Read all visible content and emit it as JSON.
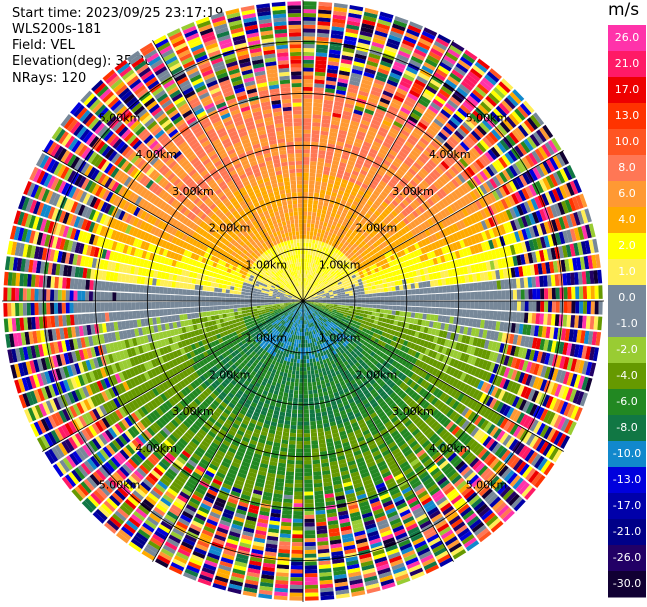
{
  "header": {
    "start_time": "Start time: 2023/09/25 23:17:19",
    "instrument": "WLS200s-181",
    "field": "Field: VEL",
    "elevation": "Elevation(deg): 35.30",
    "nrays": "NRays: 120"
  },
  "colorbar": {
    "unit": "m/s",
    "labels": [
      "26.0",
      "21.0",
      "17.0",
      "13.0",
      "10.0",
      "8.0",
      "6.0",
      "4.0",
      "2.0",
      "1.0",
      "0.0",
      "-1.0",
      "-2.0",
      "-4.0",
      "-6.0",
      "-8.0",
      "-10.0",
      "-13.0",
      "-17.0",
      "-21.0",
      "-26.0",
      "-30.0"
    ],
    "colors": [
      "#ff33aa",
      "#ff1a66",
      "#ee0000",
      "#ff3300",
      "#ff5522",
      "#ff7755",
      "#ff9933",
      "#ffaa00",
      "#ffff00",
      "#ffee55",
      "#778899",
      "#778899",
      "#99cc33",
      "#669900",
      "#228822",
      "#117744",
      "#1188cc",
      "#0000dd",
      "#0000aa",
      "#000088",
      "#220066",
      "#110033"
    ]
  },
  "chart_data": {
    "type": "ppi",
    "field": "VEL",
    "units": "m/s",
    "nrays": 120,
    "elevation_deg": 35.3,
    "range_rings": [
      {
        "range_km": 1.0,
        "label": "1.00km"
      },
      {
        "range_km": 2.0,
        "label": "2.00km"
      },
      {
        "range_km": 3.0,
        "label": "3.00km"
      },
      {
        "range_km": 4.0,
        "label": "4.00km"
      },
      {
        "range_km": 5.0,
        "label": "5.00km"
      }
    ],
    "max_range_km": 5.8,
    "spokes_deg": [
      0,
      30,
      60,
      90,
      120,
      150,
      180,
      210,
      240,
      270,
      300,
      330
    ],
    "velocity_pattern": {
      "north_near_ms": 2.0,
      "north_mid_ms": 6.0,
      "north_far_ms": 8.0,
      "east_west_ms": 0.0,
      "south_near_ms": -8.0,
      "south_mid_ms": -6.0,
      "south_far_ms": -4.0,
      "noise_beyond_km": 4.5
    }
  }
}
